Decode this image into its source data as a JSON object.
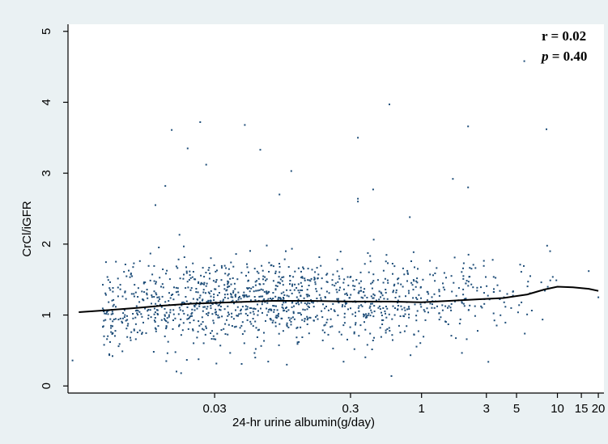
{
  "chart_data": {
    "type": "scatter",
    "title": "",
    "xlabel": "24-hr urine albumin(g/day)",
    "ylabel": "CrCl/iGFR",
    "x_scale": "log",
    "xlim": [
      0.0025,
      22
    ],
    "ylim": [
      -0.1,
      5.1
    ],
    "grid": false,
    "x_ticks": [
      {
        "value": 0.03,
        "label": "0.03"
      },
      {
        "value": 0.3,
        "label": "0.3"
      },
      {
        "value": 1,
        "label": "1"
      },
      {
        "value": 3,
        "label": "3"
      },
      {
        "value": 5,
        "label": "5"
      },
      {
        "value": 10,
        "label": "10"
      },
      {
        "value": 15,
        "label": "15"
      },
      {
        "value": 20,
        "label": "20"
      }
    ],
    "y_ticks": [
      {
        "value": 0,
        "label": "0"
      },
      {
        "value": 1,
        "label": "1"
      },
      {
        "value": 2,
        "label": "2"
      },
      {
        "value": 3,
        "label": "3"
      },
      {
        "value": 4,
        "label": "4"
      },
      {
        "value": 5,
        "label": "5"
      }
    ],
    "annotations": {
      "r_label": "r",
      "r_text": " = 0.02",
      "p_label": "p",
      "p_text": " = 0.40"
    },
    "colors": {
      "points": "#1f4e79",
      "fit_line": "#000000",
      "background": "#eaf1f3",
      "plot_area": "#ffffff"
    },
    "fit_line": {
      "name": "",
      "points": [
        {
          "x": 0.003,
          "y": 1.04
        },
        {
          "x": 0.005,
          "y": 1.07
        },
        {
          "x": 0.008,
          "y": 1.1
        },
        {
          "x": 0.012,
          "y": 1.13
        },
        {
          "x": 0.02,
          "y": 1.16
        },
        {
          "x": 0.04,
          "y": 1.18
        },
        {
          "x": 0.08,
          "y": 1.2
        },
        {
          "x": 0.15,
          "y": 1.2
        },
        {
          "x": 0.3,
          "y": 1.19
        },
        {
          "x": 0.6,
          "y": 1.19
        },
        {
          "x": 1.0,
          "y": 1.18
        },
        {
          "x": 1.6,
          "y": 1.2
        },
        {
          "x": 2.5,
          "y": 1.22
        },
        {
          "x": 4.0,
          "y": 1.24
        },
        {
          "x": 6.0,
          "y": 1.29
        },
        {
          "x": 8.0,
          "y": 1.36
        },
        {
          "x": 10.0,
          "y": 1.4
        },
        {
          "x": 13.0,
          "y": 1.39
        },
        {
          "x": 17.0,
          "y": 1.37
        },
        {
          "x": 20.0,
          "y": 1.34
        }
      ]
    },
    "outliers": [
      {
        "x": 0.0145,
        "y": 3.61
      },
      {
        "x": 0.0235,
        "y": 3.72
      },
      {
        "x": 0.019,
        "y": 3.35
      },
      {
        "x": 0.026,
        "y": 3.12
      },
      {
        "x": 0.013,
        "y": 2.82
      },
      {
        "x": 0.011,
        "y": 2.55
      },
      {
        "x": 0.05,
        "y": 3.68
      },
      {
        "x": 0.065,
        "y": 3.33
      },
      {
        "x": 0.11,
        "y": 3.03
      },
      {
        "x": 0.09,
        "y": 2.7
      },
      {
        "x": 0.34,
        "y": 3.5
      },
      {
        "x": 0.34,
        "y": 2.64
      },
      {
        "x": 0.34,
        "y": 2.6
      },
      {
        "x": 0.44,
        "y": 2.77
      },
      {
        "x": 0.58,
        "y": 3.97
      },
      {
        "x": 0.82,
        "y": 2.38
      },
      {
        "x": 2.2,
        "y": 3.66
      },
      {
        "x": 1.7,
        "y": 2.92
      },
      {
        "x": 2.2,
        "y": 2.8
      },
      {
        "x": 5.7,
        "y": 4.58
      },
      {
        "x": 8.3,
        "y": 3.62
      },
      {
        "x": 17.0,
        "y": 1.62
      },
      {
        "x": 20.0,
        "y": 1.25
      },
      {
        "x": 0.0027,
        "y": 0.36
      },
      {
        "x": 0.017,
        "y": 0.18
      },
      {
        "x": 0.6,
        "y": 0.14
      },
      {
        "x": 3.1,
        "y": 0.34
      }
    ],
    "point_cloud": {
      "n": 1300,
      "x_range": [
        0.0045,
        11
      ],
      "x_log_center": 0.05,
      "x_log_spread": 1.1,
      "y_center": 1.18,
      "y_spread": 0.3
    }
  }
}
